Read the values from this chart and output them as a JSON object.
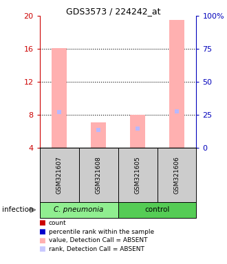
{
  "title": "GDS3573 / 224242_at",
  "samples": [
    "GSM321607",
    "GSM321608",
    "GSM321605",
    "GSM321606"
  ],
  "ylim_left": [
    4,
    20
  ],
  "ylim_right": [
    0,
    100
  ],
  "yticks_left": [
    4,
    8,
    12,
    16,
    20
  ],
  "yticks_right": [
    0,
    25,
    50,
    75,
    100
  ],
  "pink_bar_tops": [
    16.1,
    7.1,
    8.0,
    19.5
  ],
  "pink_bar_bottoms": [
    4,
    4,
    4,
    4
  ],
  "blue_marker_values": [
    8.3,
    6.2,
    6.3,
    8.4
  ],
  "left_axis_color": "#cc0000",
  "right_axis_color": "#0000bb",
  "pink_color": "#ffb0b0",
  "light_blue_color": "#b8b8ff",
  "legend_labels": [
    "count",
    "percentile rank within the sample",
    "value, Detection Call = ABSENT",
    "rank, Detection Call = ABSENT"
  ],
  "legend_colors": [
    "#cc0000",
    "#0000cc",
    "#ffb0b0",
    "#c8c8ff"
  ],
  "group1_label": "C. pneumonia",
  "group2_label": "control",
  "group1_color": "#90ee90",
  "group2_color": "#55cc55",
  "sample_box_color": "#cccccc",
  "infection_label": "infection"
}
